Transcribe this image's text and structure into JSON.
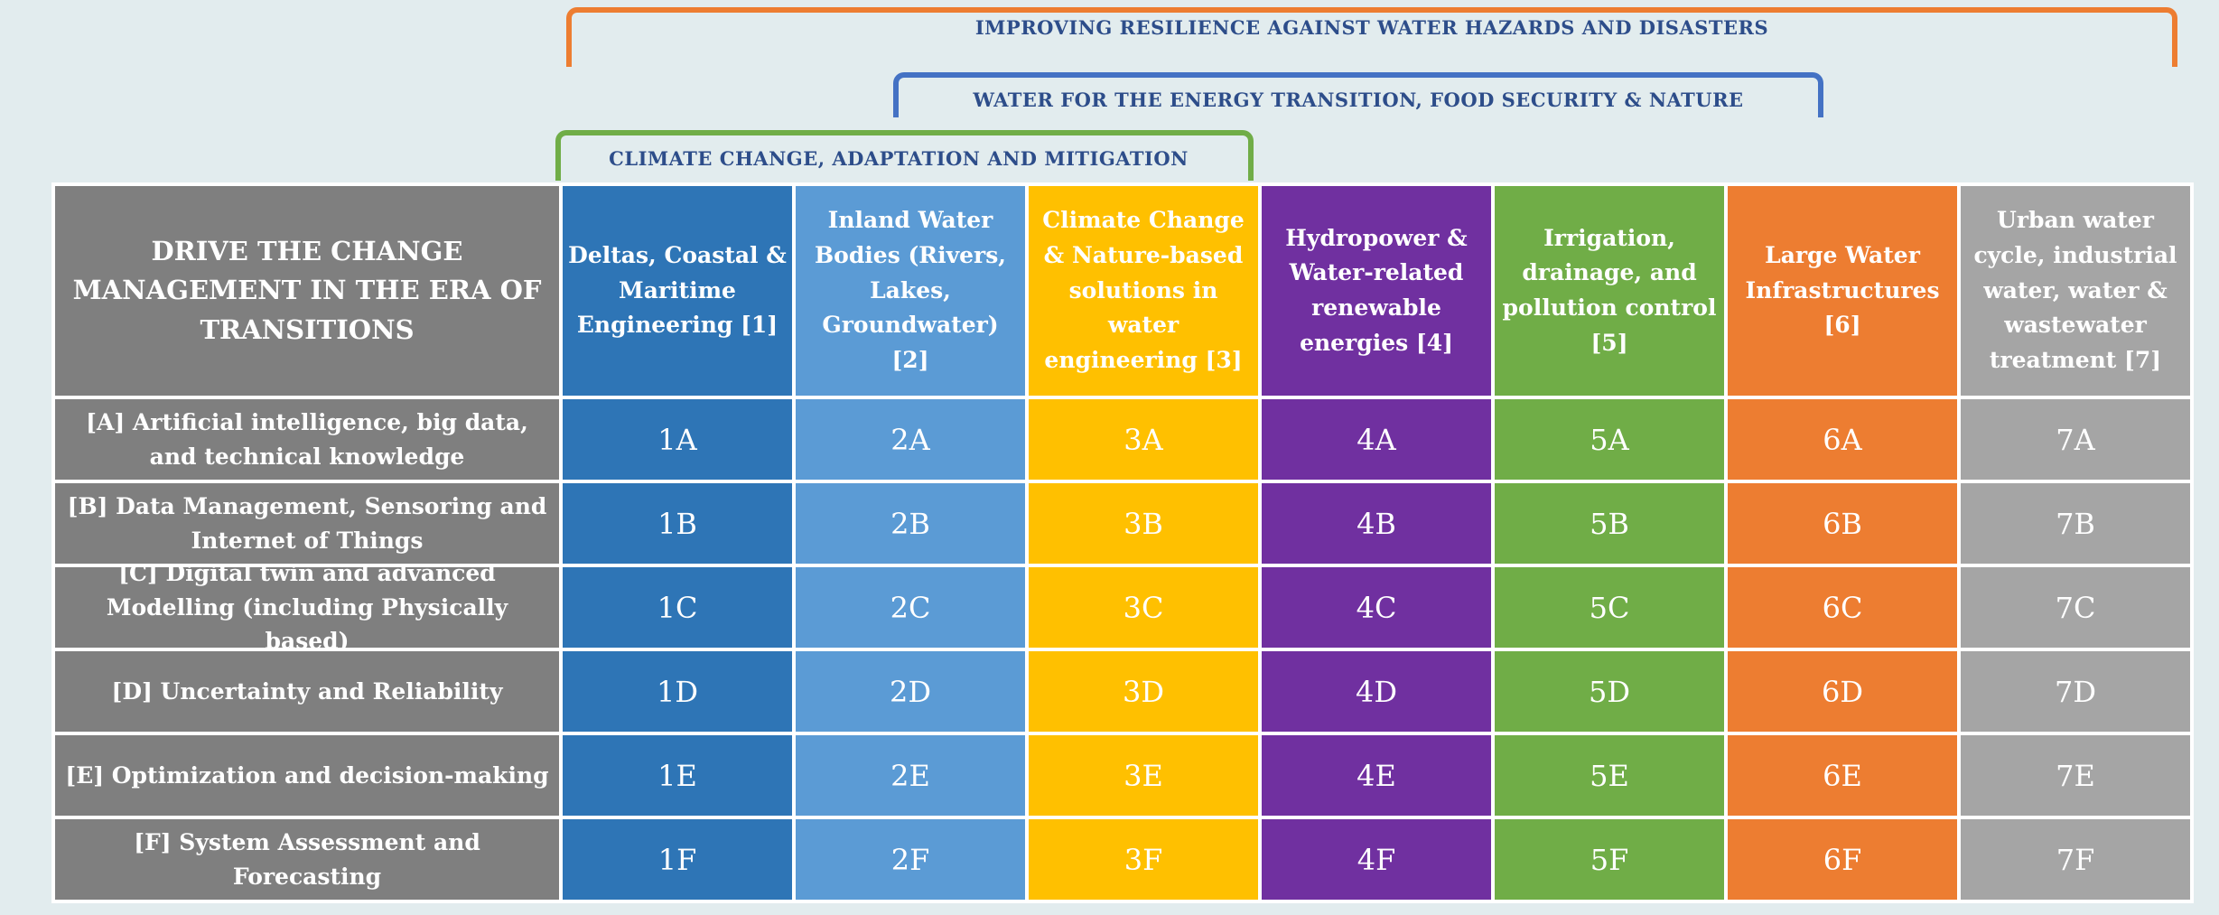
{
  "brackets": [
    {
      "label": "IMPROVING RESILIENCE  AGAINST WATER HAZARDS AND DISASTERS",
      "color": "#ed7d31"
    },
    {
      "label": "WATER FOR THE ENERGY TRANSITION, FOOD SECURITY & NATURE",
      "color": "#4472c4"
    },
    {
      "label": "CLIMATE CHANGE, ADAPTATION AND MITIGATION",
      "color": "#70ad47"
    }
  ],
  "matrix": {
    "corner_title": "DRIVE THE CHANGE MANAGEMENT IN THE ERA OF TRANSITIONS",
    "columns": [
      {
        "label": "Deltas, Coastal & Maritime Engineering [1]",
        "color": "#2e75b6"
      },
      {
        "label": "Inland Water Bodies (Rivers, Lakes, Groundwater) [2]",
        "color": "#5b9bd5"
      },
      {
        "label": "Climate Change & Nature-based solutions in water engineering [3]",
        "color": "#ffc000"
      },
      {
        "label": "Hydropower & Water-related renewable energies [4]",
        "color": "#7030a0"
      },
      {
        "label": "Irrigation, drainage, and pollution control [5]",
        "color": "#70ad47"
      },
      {
        "label": "Large Water Infrastructures [6]",
        "color": "#ed7d31"
      },
      {
        "label": "Urban water cycle, industrial water, water & wastewater treatment [7]",
        "color": "#a5a5a5"
      }
    ],
    "rows": [
      {
        "label": "[A] Artificial intelligence, big data, and technical knowledge",
        "cells": [
          "1A",
          "2A",
          "3A",
          "4A",
          "5A",
          "6A",
          "7A"
        ]
      },
      {
        "label": "[B] Data Management, Sensoring and Internet of Things",
        "cells": [
          "1B",
          "2B",
          "3B",
          "4B",
          "5B",
          "6B",
          "7B"
        ]
      },
      {
        "label": "[C] Digital twin and advanced Modelling (including Physically based)",
        "cells": [
          "1C",
          "2C",
          "3C",
          "4C",
          "5C",
          "6C",
          "7C"
        ]
      },
      {
        "label": "[D] Uncertainty and Reliability",
        "cells": [
          "1D",
          "2D",
          "3D",
          "4D",
          "5D",
          "6D",
          "7D"
        ]
      },
      {
        "label": "[E] Optimization and decision-making",
        "cells": [
          "1E",
          "2E",
          "3E",
          "4E",
          "5E",
          "6E",
          "7E"
        ]
      },
      {
        "label": "[F] System Assessment and Forecasting",
        "cells": [
          "1F",
          "2F",
          "3F",
          "4F",
          "5F",
          "6F",
          "7F"
        ]
      }
    ]
  }
}
